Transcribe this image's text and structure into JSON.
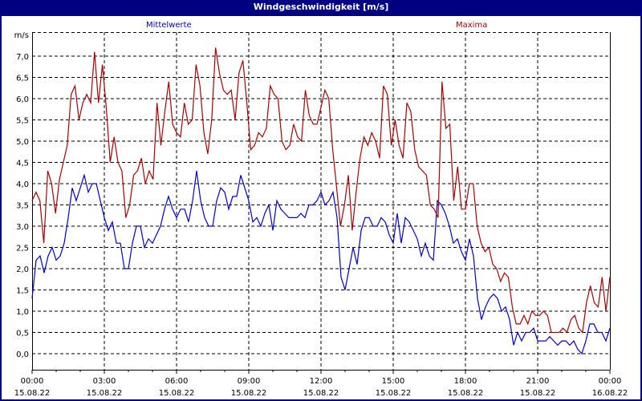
{
  "window": {
    "title": "Windgeschwindigkeit [m/s]"
  },
  "legend": {
    "mean": {
      "label": "Mittelwerte",
      "color": "#0000cc"
    },
    "max": {
      "label": "Maxima",
      "color": "#aa0000"
    }
  },
  "chart_data": {
    "type": "line",
    "title": "Windgeschwindigkeit [m/s]",
    "ylabel": "m/s",
    "ylim": [
      -0.35,
      7.5
    ],
    "yticks": [
      "0,0",
      "0,5",
      "1,0",
      "1,5",
      "2,0",
      "2,5",
      "3,0",
      "3,5",
      "4,0",
      "4,5",
      "5,0",
      "5,5",
      "6,0",
      "6,5",
      "7,0"
    ],
    "xticks": [
      {
        "time": "00:00",
        "date": "15.08.22"
      },
      {
        "time": "03:00",
        "date": "15.08.22"
      },
      {
        "time": "06:00",
        "date": "15.08.22"
      },
      {
        "time": "09:00",
        "date": "15.08.22"
      },
      {
        "time": "12:00",
        "date": "15.08.22"
      },
      {
        "time": "15:00",
        "date": "15.08.22"
      },
      {
        "time": "18:00",
        "date": "15.08.22"
      },
      {
        "time": "21:00",
        "date": "15.08.22"
      },
      {
        "time": "00:00",
        "date": "16.08.22"
      }
    ],
    "x_interval_minutes": 10,
    "grid": true,
    "series": [
      {
        "name": "Mittelwerte",
        "color": "#0000cc",
        "values": [
          1.3,
          2.2,
          2.3,
          1.9,
          2.3,
          2.5,
          2.2,
          2.3,
          2.6,
          3.2,
          3.9,
          3.6,
          3.9,
          4.2,
          3.8,
          4.0,
          4.0,
          3.6,
          3.2,
          2.9,
          3.1,
          2.6,
          2.6,
          2.0,
          2.0,
          2.6,
          3.0,
          3.0,
          2.5,
          2.7,
          2.6,
          2.8,
          3.0,
          3.4,
          3.7,
          3.4,
          3.2,
          3.4,
          3.4,
          3.1,
          3.6,
          4.3,
          3.6,
          3.2,
          3.0,
          3.0,
          3.6,
          3.9,
          3.8,
          3.4,
          3.7,
          3.7,
          4.2,
          3.9,
          3.6,
          3.1,
          3.2,
          3.0,
          3.3,
          3.5,
          2.9,
          3.6,
          3.4,
          3.3,
          3.2,
          3.2,
          3.2,
          3.3,
          3.2,
          3.5,
          3.5,
          3.6,
          3.8,
          3.5,
          3.6,
          3.8,
          3.2,
          1.8,
          1.5,
          2.0,
          2.5,
          2.1,
          2.9,
          3.2,
          3.2,
          3.0,
          3.0,
          3.2,
          3.1,
          2.8,
          2.6,
          3.3,
          2.6,
          3.2,
          3.1,
          2.9,
          2.7,
          2.3,
          2.6,
          2.3,
          2.2,
          3.6,
          3.5,
          3.3,
          3.0,
          2.6,
          2.7,
          2.4,
          2.2,
          2.7,
          2.3,
          1.3,
          0.8,
          1.1,
          1.3,
          1.4,
          1.3,
          1.0,
          1.1,
          0.8,
          0.2,
          0.5,
          0.3,
          0.5,
          0.5,
          0.6,
          0.3,
          0.3,
          0.3,
          0.4,
          0.3,
          0.2,
          0.3,
          0.3,
          0.2,
          0.3,
          0.1,
          0.0,
          0.3,
          0.7,
          0.7,
          0.5,
          0.5,
          0.3,
          0.6
        ]
      },
      {
        "name": "Maxima",
        "color": "#aa0000",
        "values": [
          3.6,
          3.8,
          3.6,
          2.6,
          4.3,
          4.0,
          3.3,
          4.1,
          4.5,
          4.9,
          6.1,
          6.3,
          5.5,
          5.9,
          6.1,
          5.9,
          7.1,
          5.9,
          6.8,
          5.8,
          4.5,
          5.1,
          4.5,
          4.3,
          3.2,
          3.5,
          4.2,
          4.3,
          4.6,
          4.0,
          4.3,
          4.1,
          5.9,
          4.9,
          5.7,
          6.4,
          5.4,
          5.2,
          5.1,
          5.9,
          5.4,
          5.5,
          6.8,
          6.3,
          5.2,
          4.7,
          5.5,
          7.2,
          6.6,
          6.2,
          6.1,
          6.2,
          5.5,
          6.6,
          6.9,
          5.9,
          4.8,
          4.9,
          5.2,
          5.1,
          5.3,
          6.3,
          6.1,
          6.0,
          5.0,
          4.8,
          4.9,
          5.4,
          5.1,
          5.0,
          6.2,
          5.6,
          5.4,
          5.4,
          5.8,
          6.2,
          6.0,
          4.8,
          3.9,
          3.0,
          3.5,
          4.2,
          2.9,
          3.8,
          4.6,
          5.1,
          4.9,
          5.2,
          5.0,
          4.6,
          6.3,
          6.1,
          4.9,
          5.5,
          4.9,
          4.6,
          5.9,
          5.7,
          4.8,
          4.4,
          4.3,
          4.2,
          3.5,
          3.4,
          3.2,
          6.4,
          5.3,
          5.4,
          3.6,
          4.4,
          3.4,
          3.4,
          4.0,
          4.0,
          3.0,
          2.6,
          2.4,
          2.5,
          2.1,
          2.0,
          1.7,
          1.9,
          1.8,
          1.1,
          0.7,
          0.7,
          0.9,
          0.7,
          1.0,
          0.9,
          0.9,
          1.0,
          0.9,
          0.5,
          0.5,
          0.5,
          0.6,
          0.5,
          0.8,
          0.9,
          0.6,
          0.5,
          1.2,
          1.6,
          1.2,
          1.1,
          1.8,
          1.0,
          1.8
        ]
      }
    ]
  }
}
